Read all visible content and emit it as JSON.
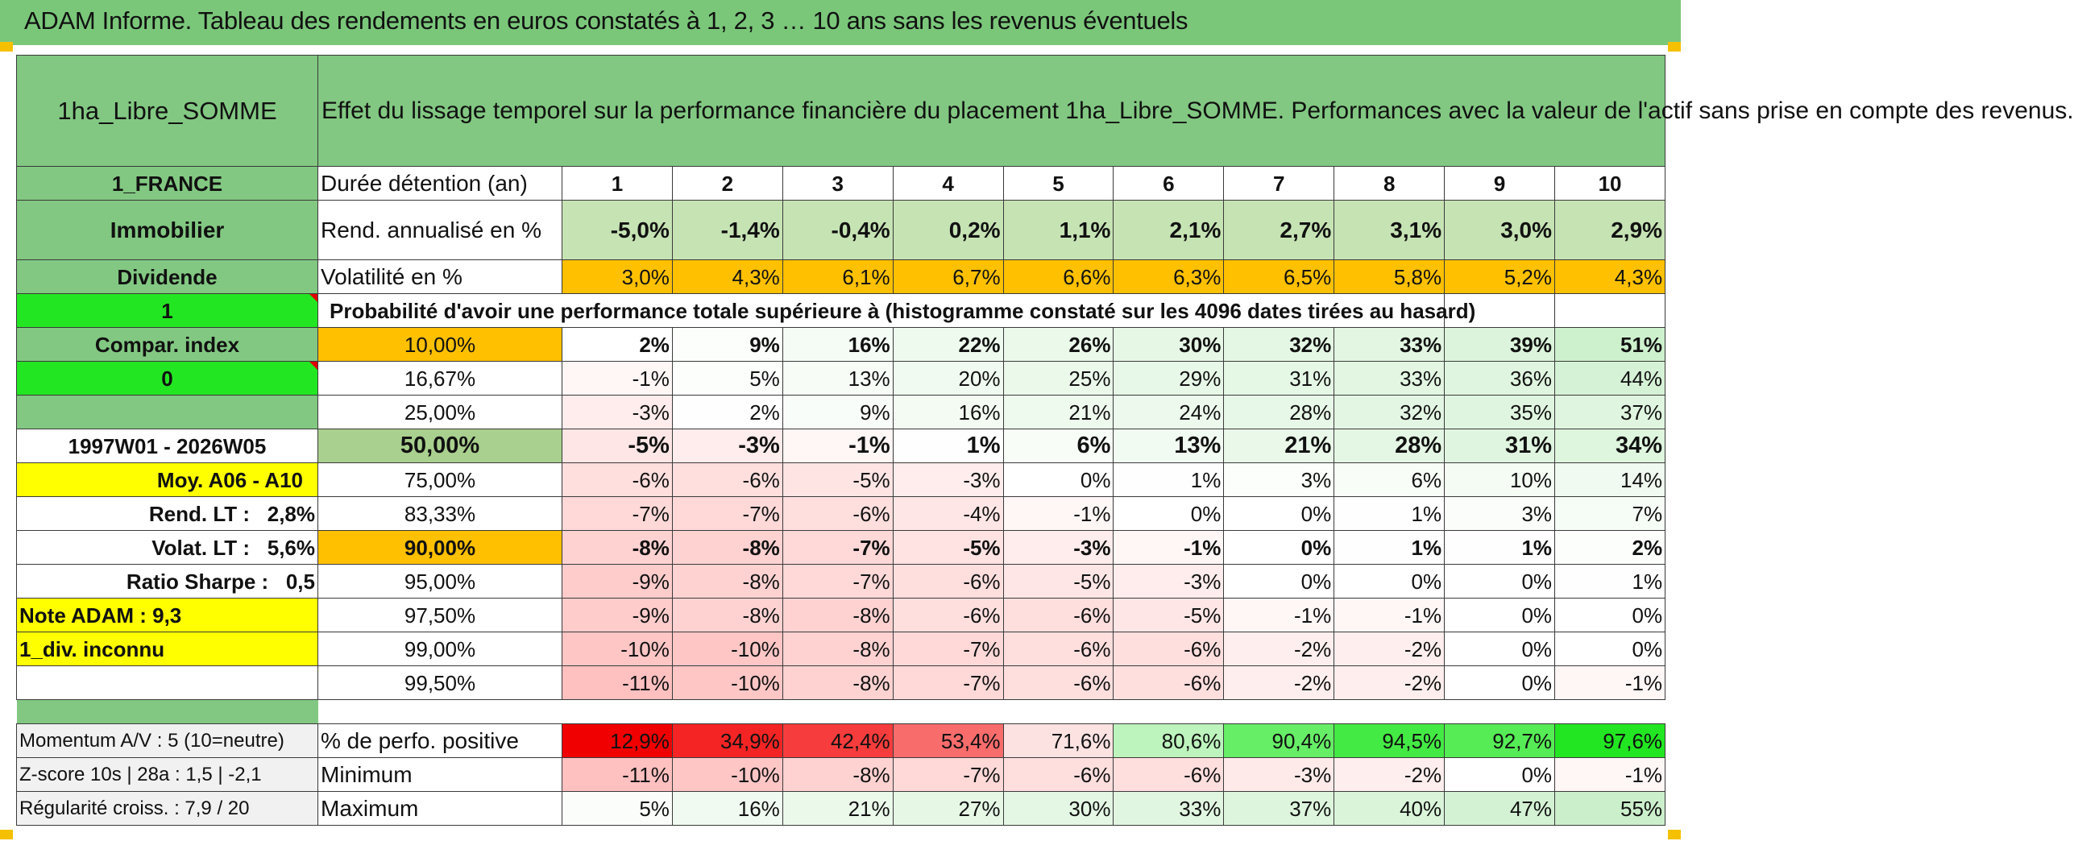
{
  "title": "ADAM Informe. Tableau des rendements en euros constatés à 1, 2, 3 … 10 ans sans les revenus éventuels",
  "product": "1ha_Libre_SOMME",
  "description": "Effet du lissage temporel sur la performance financière du placement 1ha_Libre_SOMME. Performances avec la valeur de l'actif sans prise en compte des revenus.",
  "durations_label": "Durée détention (an)",
  "durations": [
    "1",
    "2",
    "3",
    "4",
    "5",
    "6",
    "7",
    "8",
    "9",
    "10"
  ],
  "side": {
    "country": "1_FRANCE",
    "category": "Immobilier",
    "type": "Dividende",
    "flag1": "1",
    "compar_index": "Compar. index",
    "flag0": "0",
    "period": "1997W01 - 2026W05",
    "moy": "Moy. A06 - A10",
    "rend_lt_label": "Rend. LT :",
    "rend_lt_value": "2,8%",
    "volat_lt_label": "Volat. LT :",
    "volat_lt_value": "5,6%",
    "sharpe_label": "Ratio Sharpe :",
    "sharpe_value": "0,5",
    "note": "Note ADAM : 9,3",
    "div": "1_div. inconnu",
    "momentum": "Momentum A/V : 5 (10=neutre)",
    "zscore": "Z-score 10s | 28a : 1,5 | -2,1",
    "regularite": "Régularité croiss. : 7,9 / 20"
  },
  "rend": {
    "label": "Rend. annualisé en %",
    "values": [
      "-5,0%",
      "-1,4%",
      "-0,4%",
      "0,2%",
      "1,1%",
      "2,1%",
      "2,7%",
      "3,1%",
      "3,0%",
      "2,9%"
    ]
  },
  "volat": {
    "label": "Volatilité en %",
    "values": [
      "3,0%",
      "4,3%",
      "6,1%",
      "6,7%",
      "6,6%",
      "6,3%",
      "6,5%",
      "5,8%",
      "5,2%",
      "4,3%"
    ]
  },
  "prob_title": "Probabilité d'avoir une performance totale supérieure à (histogramme constaté sur les 4096 dates tirées au hasard)",
  "percentiles": [
    {
      "p": "10,00%",
      "values": [
        "2%",
        "9%",
        "16%",
        "22%",
        "26%",
        "30%",
        "32%",
        "33%",
        "39%",
        "51%"
      ]
    },
    {
      "p": "16,67%",
      "values": [
        "-1%",
        "5%",
        "13%",
        "20%",
        "25%",
        "29%",
        "31%",
        "33%",
        "36%",
        "44%"
      ]
    },
    {
      "p": "25,00%",
      "values": [
        "-3%",
        "2%",
        "9%",
        "16%",
        "21%",
        "24%",
        "28%",
        "32%",
        "35%",
        "37%"
      ]
    },
    {
      "p": "50,00%",
      "values": [
        "-5%",
        "-3%",
        "-1%",
        "1%",
        "6%",
        "13%",
        "21%",
        "28%",
        "31%",
        "34%"
      ]
    },
    {
      "p": "75,00%",
      "values": [
        "-6%",
        "-6%",
        "-5%",
        "-3%",
        "0%",
        "1%",
        "3%",
        "6%",
        "10%",
        "14%"
      ]
    },
    {
      "p": "83,33%",
      "values": [
        "-7%",
        "-7%",
        "-6%",
        "-4%",
        "-1%",
        "0%",
        "0%",
        "1%",
        "3%",
        "7%"
      ]
    },
    {
      "p": "90,00%",
      "values": [
        "-8%",
        "-8%",
        "-7%",
        "-5%",
        "-3%",
        "-1%",
        "0%",
        "1%",
        "1%",
        "2%"
      ]
    },
    {
      "p": "95,00%",
      "values": [
        "-9%",
        "-8%",
        "-7%",
        "-6%",
        "-5%",
        "-3%",
        "0%",
        "0%",
        "0%",
        "1%"
      ]
    },
    {
      "p": "97,50%",
      "values": [
        "-9%",
        "-8%",
        "-8%",
        "-6%",
        "-6%",
        "-5%",
        "-1%",
        "-1%",
        "0%",
        "0%"
      ]
    },
    {
      "p": "99,00%",
      "values": [
        "-10%",
        "-10%",
        "-8%",
        "-7%",
        "-6%",
        "-6%",
        "-2%",
        "-2%",
        "0%",
        "0%"
      ]
    },
    {
      "p": "99,50%",
      "values": [
        "-11%",
        "-10%",
        "-8%",
        "-7%",
        "-6%",
        "-6%",
        "-2%",
        "-2%",
        "0%",
        "-1%"
      ]
    }
  ],
  "positive": {
    "label": "% de perfo. positive",
    "values": [
      "12,9%",
      "34,9%",
      "42,4%",
      "53,4%",
      "71,6%",
      "80,6%",
      "90,4%",
      "94,5%",
      "92,7%",
      "97,6%"
    ]
  },
  "minimum": {
    "label": "Minimum",
    "values": [
      "-11%",
      "-10%",
      "-8%",
      "-7%",
      "-6%",
      "-6%",
      "-3%",
      "-2%",
      "0%",
      "-1%"
    ]
  },
  "maximum": {
    "label": "Maximum",
    "values": [
      "5%",
      "16%",
      "21%",
      "27%",
      "30%",
      "33%",
      "37%",
      "40%",
      "47%",
      "55%"
    ]
  },
  "colors": {
    "header_green": "#82c882",
    "orange": "#ffc000",
    "yellow": "#ffff00",
    "bright_green": "#22e622",
    "light_green": "#c6e3b4",
    "red_text": "#e0001c"
  }
}
